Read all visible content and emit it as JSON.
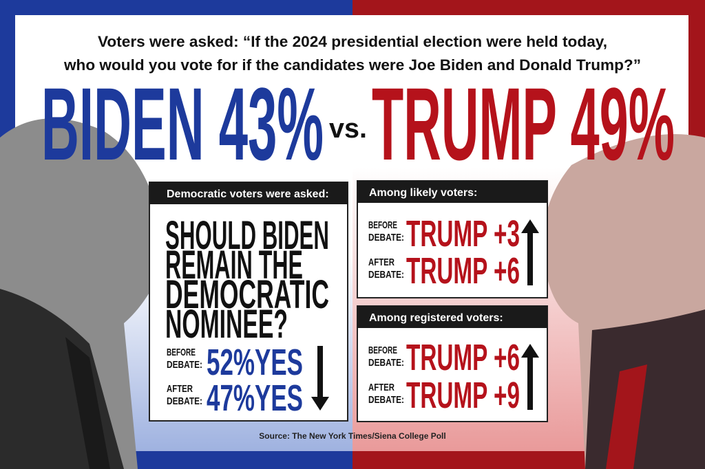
{
  "header": {
    "question_lines": [
      "Voters were asked: “If the 2024 presidential election were held today,",
      "who would you vote for if the candidates were Joe Biden and Donald Trump?”"
    ]
  },
  "headline": {
    "biden": "BIDEN 43%",
    "vs": "vs.",
    "trump": "TRUMP 49%"
  },
  "panels": [
    {
      "heading": "Democratic voters were asked:",
      "question_lines": [
        "SHOULD BIDEN",
        "REMAIN THE",
        "DEMOCRATIC",
        "NOMINEE?"
      ],
      "rows": [
        {
          "label_lines": [
            "BEFORE",
            "DEBATE:"
          ],
          "result": "52%YES"
        },
        {
          "label_lines": [
            "AFTER",
            "DEBATE:"
          ],
          "result": "47%YES"
        }
      ]
    },
    {
      "heading": "Among likely voters:",
      "rows": [
        {
          "label_lines": [
            "BEFORE",
            "DEBATE:"
          ],
          "result": "TRUMP +3"
        },
        {
          "label_lines": [
            "AFTER",
            "DEBATE:"
          ],
          "result": "TRUMP +6"
        }
      ]
    },
    {
      "heading": "Among registered voters:",
      "rows": [
        {
          "label_lines": [
            "BEFORE",
            "DEBATE:"
          ],
          "result": "TRUMP +6"
        },
        {
          "label_lines": [
            "AFTER",
            "DEBATE:"
          ],
          "result": "TRUMP +9"
        }
      ]
    }
  ],
  "source": "Source: The New York Times/Siena College Poll"
}
